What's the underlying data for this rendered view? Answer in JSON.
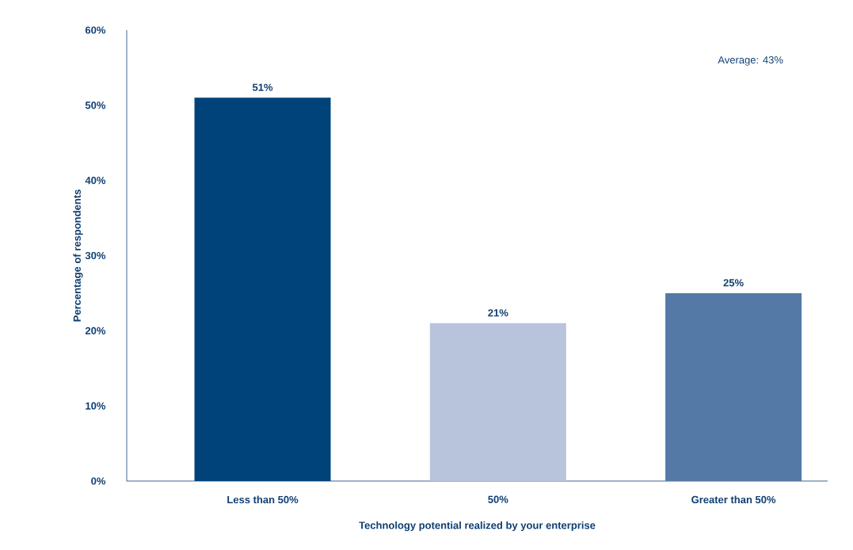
{
  "chart_data": {
    "type": "bar",
    "xlabel": "Technology potential realized by your enterprise",
    "ylabel": "Percentage of respondents",
    "categories": [
      "Less than 50%",
      "50%",
      "Greater than 50%"
    ],
    "values": [
      51,
      21,
      25
    ],
    "colors": [
      "#00427a",
      "#b8c4dc",
      "#5479a6"
    ],
    "value_labels": [
      "51%",
      "21%",
      "25%"
    ],
    "ylim": [
      0,
      60
    ],
    "yticks": [
      {
        "value": 0,
        "label": "0%"
      },
      {
        "value": 10,
        "label": "10%"
      },
      {
        "value": 20,
        "label": "20%"
      },
      {
        "value": 30,
        "label": "30%"
      },
      {
        "value": 40,
        "label": "40%"
      },
      {
        "value": 50,
        "label": "50%"
      },
      {
        "value": 60,
        "label": "60%"
      }
    ],
    "annotations": [
      "Average: 43%"
    ],
    "grid": false
  }
}
